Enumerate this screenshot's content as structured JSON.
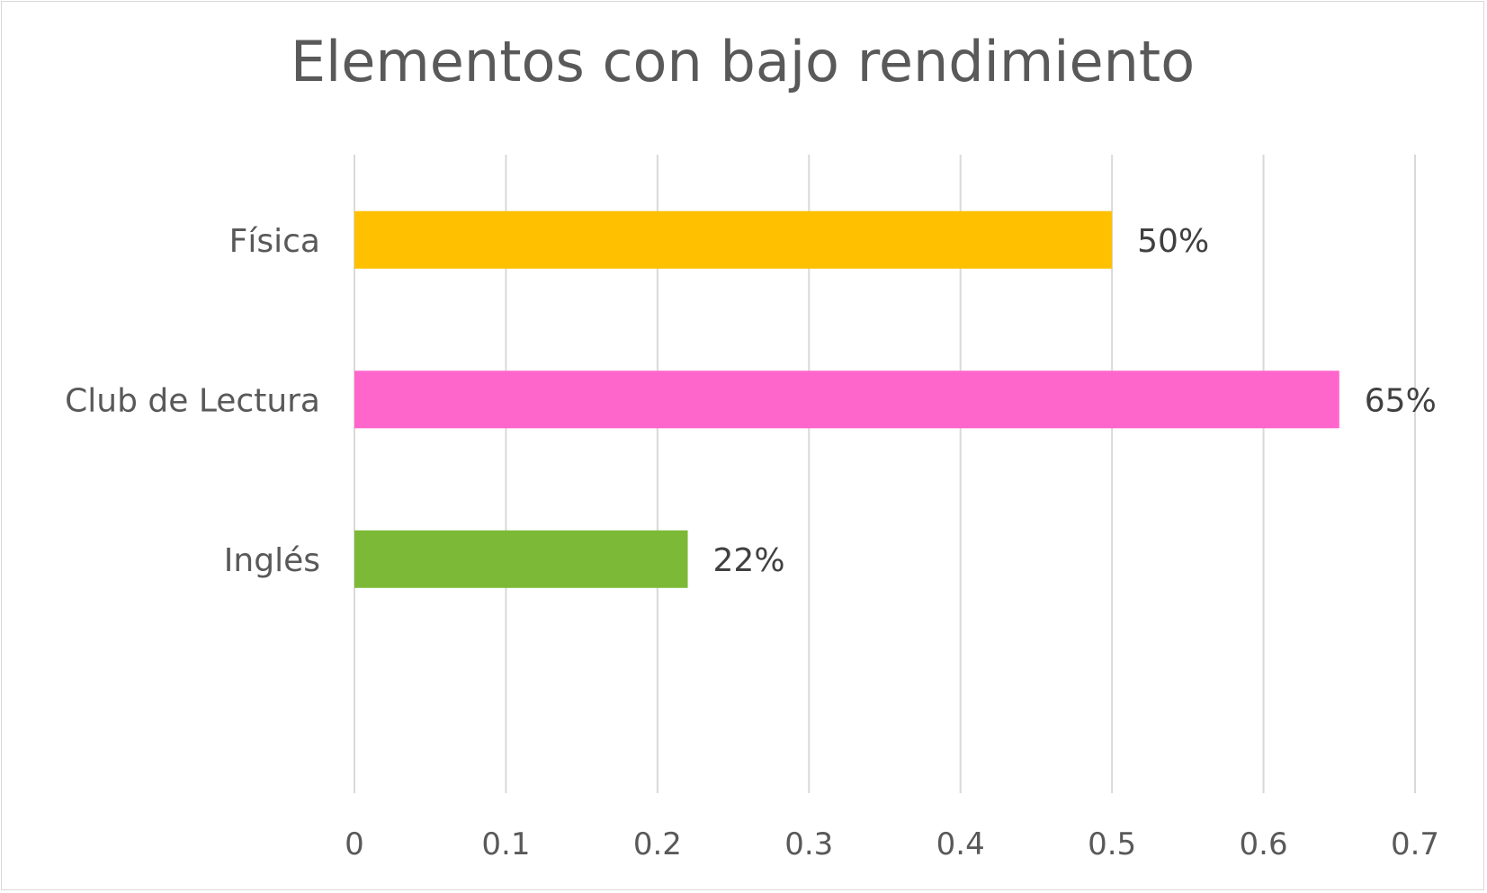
{
  "chart_data": {
    "type": "bar",
    "orientation": "horizontal",
    "title": "Elementos con bajo rendimiento",
    "categories": [
      "Física",
      "Club de Lectura",
      "Inglés"
    ],
    "values": [
      0.5,
      0.65,
      0.22
    ],
    "data_labels": [
      "50%",
      "65%",
      "22%"
    ],
    "colors": [
      "#FFC000",
      "#FF66CC",
      "#7CB936"
    ],
    "xlim": [
      0,
      0.7
    ],
    "x_ticks": [
      0,
      0.1,
      0.2,
      0.3,
      0.4,
      0.5,
      0.6,
      0.7
    ],
    "x_tick_labels": [
      "0",
      "0.1",
      "0.2",
      "0.3",
      "0.4",
      "0.5",
      "0.6",
      "0.7"
    ],
    "xlabel": "",
    "ylabel": "",
    "grid": "vertical",
    "legend": "none",
    "grid_color": "#D9D9D9"
  }
}
